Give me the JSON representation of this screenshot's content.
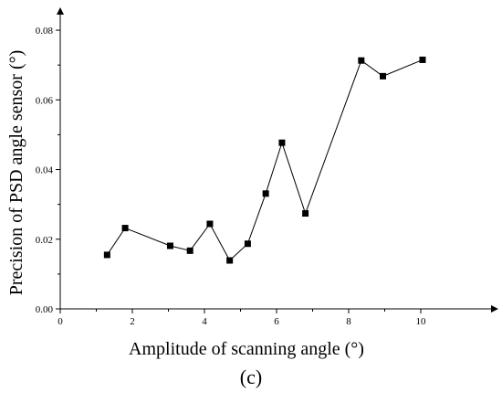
{
  "chart_data": {
    "type": "line",
    "xlabel": "Amplitude of scanning angle (°)",
    "ylabel": "Precision of PSD angle sensor (°)",
    "panel_label": "(c)",
    "xlim": [
      0,
      12
    ],
    "ylim": [
      0,
      0.085
    ],
    "x_ticks": [
      0,
      2,
      4,
      6,
      8,
      10
    ],
    "x_tick_labels": [
      "0",
      "2",
      "4",
      "6",
      "8",
      "10"
    ],
    "y_ticks": [
      0,
      0.02,
      0.04,
      0.06,
      0.08
    ],
    "y_tick_labels": [
      "0.00",
      "0.02",
      "0.04",
      "0.06",
      "0.08"
    ],
    "marker": "square",
    "color": "#000000",
    "series": [
      {
        "x": [
          1.3,
          1.8,
          3.05,
          3.6,
          4.15,
          4.7,
          5.2,
          5.7,
          6.15,
          6.8,
          8.35,
          8.95,
          10.05
        ],
        "y": [
          0.0155,
          0.0232,
          0.0181,
          0.0167,
          0.0244,
          0.0139,
          0.0187,
          0.0331,
          0.0477,
          0.0274,
          0.0713,
          0.0668,
          0.0715
        ]
      }
    ]
  }
}
